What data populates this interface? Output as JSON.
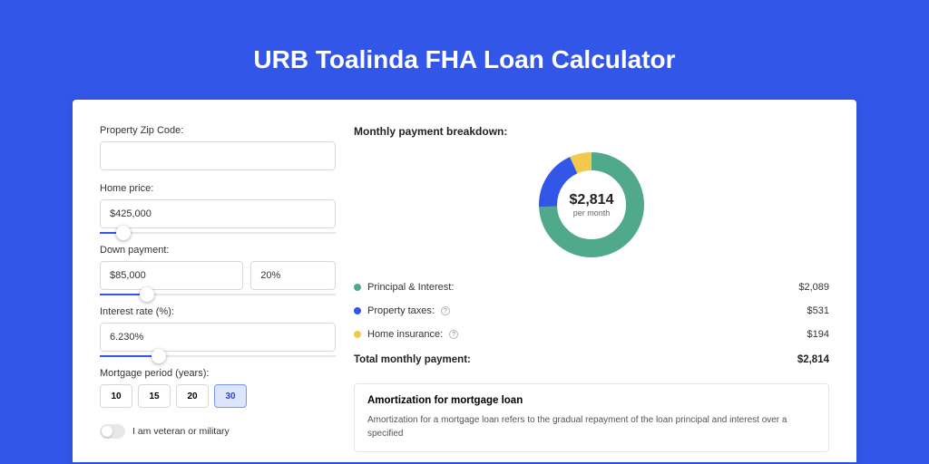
{
  "page": {
    "title": "URB Toalinda FHA Loan Calculator",
    "background": "#3256e8"
  },
  "form": {
    "zip": {
      "label": "Property Zip Code:",
      "value": ""
    },
    "home_price": {
      "label": "Home price:",
      "value": "$425,000",
      "slider_pct": 10
    },
    "down_payment": {
      "label": "Down payment:",
      "value": "$85,000",
      "pct_value": "20%",
      "slider_pct": 20
    },
    "interest": {
      "label": "Interest rate (%):",
      "value": "6.230%",
      "slider_pct": 25
    },
    "period": {
      "label": "Mortgage period (years):",
      "options": [
        "10",
        "15",
        "20",
        "30"
      ],
      "selected": "30"
    },
    "veteran": {
      "label": "I am veteran or military",
      "on": false
    }
  },
  "breakdown": {
    "title": "Monthly payment breakdown:",
    "center_amount": "$2,814",
    "center_sub": "per month",
    "donut": {
      "slices": [
        {
          "color": "#4fa98a",
          "pct": 74.2
        },
        {
          "color": "#3256e8",
          "pct": 18.9
        },
        {
          "color": "#f2c94c",
          "pct": 6.9
        }
      ],
      "stroke_width": 20
    },
    "rows": [
      {
        "color": "#4fa98a",
        "label": "Principal & Interest:",
        "info": false,
        "value": "$2,089"
      },
      {
        "color": "#3256e8",
        "label": "Property taxes:",
        "info": true,
        "value": "$531"
      },
      {
        "color": "#f2c94c",
        "label": "Home insurance:",
        "info": true,
        "value": "$194"
      }
    ],
    "total": {
      "label": "Total monthly payment:",
      "value": "$2,814"
    }
  },
  "amortization": {
    "title": "Amortization for mortgage loan",
    "text": "Amortization for a mortgage loan refers to the gradual repayment of the loan principal and interest over a specified"
  }
}
